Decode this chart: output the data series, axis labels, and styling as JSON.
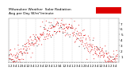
{
  "title": "Milwaukee Weather  Solar Radiation\nAvg per Day W/m²/minute",
  "title_fontsize": 3.2,
  "background_color": "#ffffff",
  "plot_bg_color": "#ffffff",
  "grid_color": "#bbbbbb",
  "dot_color_red": "#dd0000",
  "dot_color_black": "#000000",
  "legend_box_color": "#dd0000",
  "ylim": [
    0,
    8
  ],
  "xlim": [
    0,
    370
  ],
  "ylabel_fontsize": 3.0,
  "xlabel_fontsize": 2.8,
  "ytick_values": [
    1,
    2,
    3,
    4,
    5,
    6,
    7
  ],
  "ytick_labels": [
    "1",
    "2",
    "3",
    "4",
    "5",
    "6",
    "7"
  ],
  "num_points": 365,
  "seed": 42,
  "month_starts": [
    1,
    32,
    60,
    91,
    121,
    152,
    182,
    213,
    244,
    274,
    305,
    335,
    366
  ]
}
